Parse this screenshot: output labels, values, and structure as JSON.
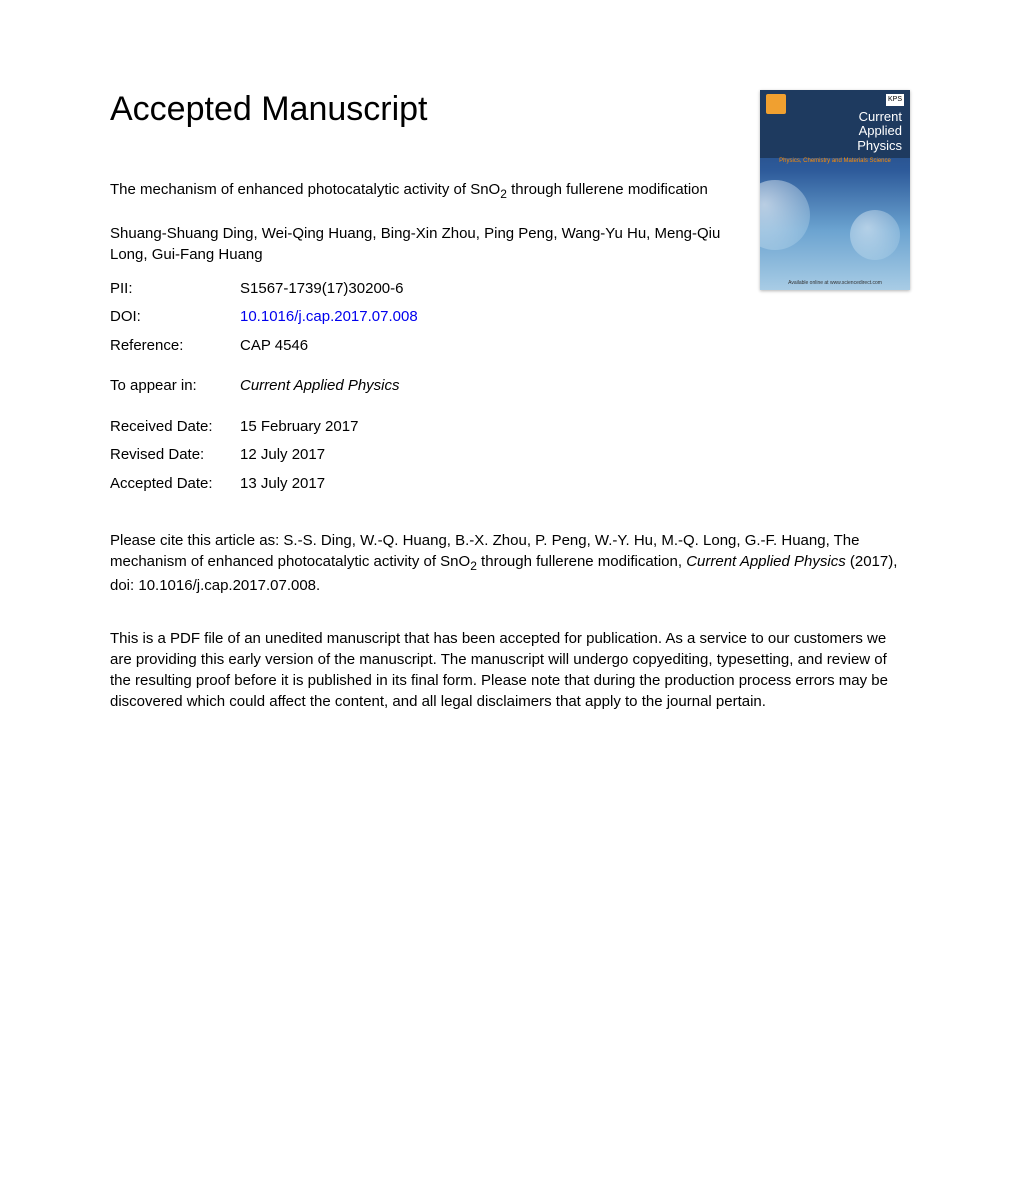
{
  "heading": "Accepted Manuscript",
  "cover": {
    "journal_line1": "Current",
    "journal_line2": "Applied",
    "journal_line3": "Physics",
    "subtitle": "Physics, Chemistry and Materials Science",
    "logo_right": "KPS",
    "footer": "Available online at www.sciencedirect.com",
    "bg_gradient_top": "#1a3a6b",
    "bg_gradient_bottom": "#a8cce5"
  },
  "article": {
    "title_pre": "The mechanism of enhanced photocatalytic activity of SnO",
    "title_sub": "2",
    "title_post": " through fullerene modification",
    "authors": "Shuang-Shuang Ding, Wei-Qing Huang, Bing-Xin Zhou, Ping Peng, Wang-Yu Hu, Meng-Qiu Long, Gui-Fang Huang"
  },
  "meta": {
    "pii_label": "PII:",
    "pii_value": "S1567-1739(17)30200-6",
    "doi_label": "DOI:",
    "doi_value": "10.1016/j.cap.2017.07.008",
    "ref_label": "Reference:",
    "ref_value": "CAP 4546",
    "appear_label": "To appear in:",
    "appear_value": "Current Applied Physics",
    "received_label": "Received Date:",
    "received_value": "15 February 2017",
    "revised_label": "Revised Date:",
    "revised_value": "12 July 2017",
    "accepted_label": "Accepted Date:",
    "accepted_value": "13 July 2017"
  },
  "citation": {
    "pre": "Please cite this article as: S.-S. Ding, W.-Q. Huang, B.-X. Zhou, P. Peng, W.-Y. Hu, M.-Q. Long, G.-F. Huang, The mechanism of enhanced photocatalytic activity of SnO",
    "sub": "2",
    "post_before_journal": " through fullerene modification, ",
    "journal": "Current Applied Physics",
    "post_after_journal": " (2017), doi: 10.1016/j.cap.2017.07.008."
  },
  "disclaimer": "This is a PDF file of an unedited manuscript that has been accepted for publication. As a service to our customers we are providing this early version of the manuscript. The manuscript will undergo copyediting, typesetting, and review of the resulting proof before it is published in its final form. Please note that during the production process errors may be discovered which could affect the content, and all legal disclaimers that apply to the journal pertain."
}
